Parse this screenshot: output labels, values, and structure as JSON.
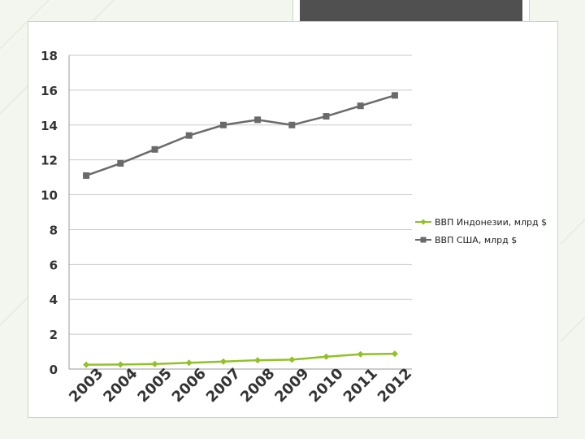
{
  "chart_data": {
    "type": "line",
    "title": "",
    "xlabel": "",
    "ylabel": "",
    "categories": [
      "2003",
      "2004",
      "2005",
      "2006",
      "2007",
      "2008",
      "2009",
      "2010",
      "2011",
      "2012"
    ],
    "ylim": [
      0,
      18
    ],
    "yticks": [
      "0",
      "2",
      "4",
      "6",
      "8",
      "10",
      "12",
      "14",
      "16",
      "18"
    ],
    "grid": "horizontal",
    "legend_position": "right",
    "series": [
      {
        "name": "ВВП Индонезии, млрд $",
        "color": "#92c125",
        "marker": "diamond",
        "values": [
          0.25,
          0.26,
          0.29,
          0.36,
          0.43,
          0.51,
          0.54,
          0.71,
          0.85,
          0.88
        ]
      },
      {
        "name": "ВВП США, млрд $",
        "color": "#6a6a6a",
        "marker": "square",
        "values": [
          11.1,
          11.8,
          12.6,
          13.4,
          14.0,
          14.3,
          14.0,
          14.5,
          15.1,
          15.7
        ]
      }
    ]
  },
  "colors": {
    "panel_border": "#c8d8b4",
    "decor_dark": "#505050"
  }
}
